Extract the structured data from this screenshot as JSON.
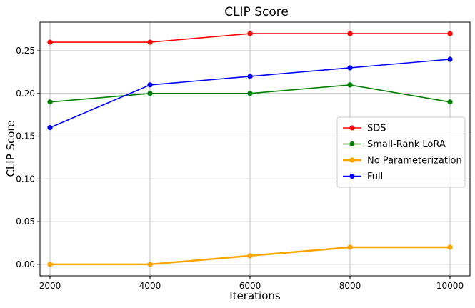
{
  "chart_data": {
    "type": "line",
    "title": "CLIP Score",
    "xlabel": "Iterations",
    "ylabel": "CLIP Score",
    "x": [
      2000,
      4000,
      6000,
      8000,
      10000
    ],
    "x_ticks": [
      "2000",
      "4000",
      "6000",
      "8000",
      "10000"
    ],
    "y_ticks": [
      "0.00",
      "0.05",
      "0.10",
      "0.15",
      "0.20",
      "0.25"
    ],
    "xlim": [
      1800,
      10400
    ],
    "ylim": [
      -0.0135,
      0.2835
    ],
    "grid": true,
    "legend_position": "center-right",
    "series": [
      {
        "name": "SDS",
        "color": "#ff0000",
        "values": [
          0.26,
          0.26,
          0.27,
          0.27,
          0.27
        ]
      },
      {
        "name": "Small-Rank LoRA",
        "color": "#008000",
        "values": [
          0.19,
          0.2,
          0.2,
          0.21,
          0.19
        ]
      },
      {
        "name": "No Parameterization",
        "color": "#ffa500",
        "values": [
          0.0,
          0.0,
          0.01,
          0.02,
          0.02
        ]
      },
      {
        "name": "Full",
        "color": "#0000ff",
        "values": [
          0.16,
          0.21,
          0.22,
          0.23,
          0.24
        ]
      }
    ]
  }
}
